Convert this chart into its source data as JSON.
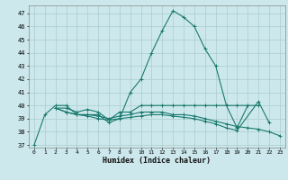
{
  "title": "",
  "xlabel": "Humidex (Indice chaleur)",
  "bg_color": "#cce8ec",
  "grid_color": "#aacccc",
  "line_color": "#1a7a6e",
  "xlim": [
    -0.5,
    23.5
  ],
  "ylim": [
    36.8,
    47.6
  ],
  "yticks": [
    37,
    38,
    39,
    40,
    41,
    42,
    43,
    44,
    45,
    46,
    47
  ],
  "xticks": [
    0,
    1,
    2,
    3,
    4,
    5,
    6,
    7,
    8,
    9,
    10,
    11,
    12,
    13,
    14,
    15,
    16,
    17,
    18,
    19,
    20,
    21,
    22,
    23
  ],
  "series": [
    [
      37.0,
      39.3,
      40.0,
      40.0,
      39.3,
      39.3,
      39.3,
      38.7,
      39.0,
      41.0,
      42.0,
      44.0,
      45.7,
      47.2,
      46.7,
      46.0,
      44.3,
      43.0,
      40.0,
      38.3,
      40.0,
      null,
      null,
      null
    ],
    [
      null,
      null,
      39.8,
      39.8,
      39.5,
      39.7,
      39.5,
      38.9,
      39.5,
      39.5,
      40.0,
      40.0,
      40.0,
      40.0,
      40.0,
      40.0,
      40.0,
      40.0,
      40.0,
      40.0,
      40.0,
      40.0,
      null,
      null
    ],
    [
      null,
      null,
      39.8,
      39.5,
      39.3,
      39.3,
      39.2,
      39.0,
      39.2,
      39.3,
      39.5,
      39.5,
      39.5,
      39.3,
      39.3,
      39.2,
      39.0,
      38.8,
      38.6,
      38.4,
      38.3,
      38.2,
      38.0,
      37.7
    ],
    [
      null,
      null,
      39.8,
      39.5,
      39.3,
      39.2,
      39.0,
      38.9,
      39.0,
      39.1,
      39.2,
      39.3,
      39.3,
      39.2,
      39.1,
      39.0,
      38.8,
      38.6,
      38.3,
      38.1,
      null,
      40.3,
      38.7,
      null
    ]
  ]
}
